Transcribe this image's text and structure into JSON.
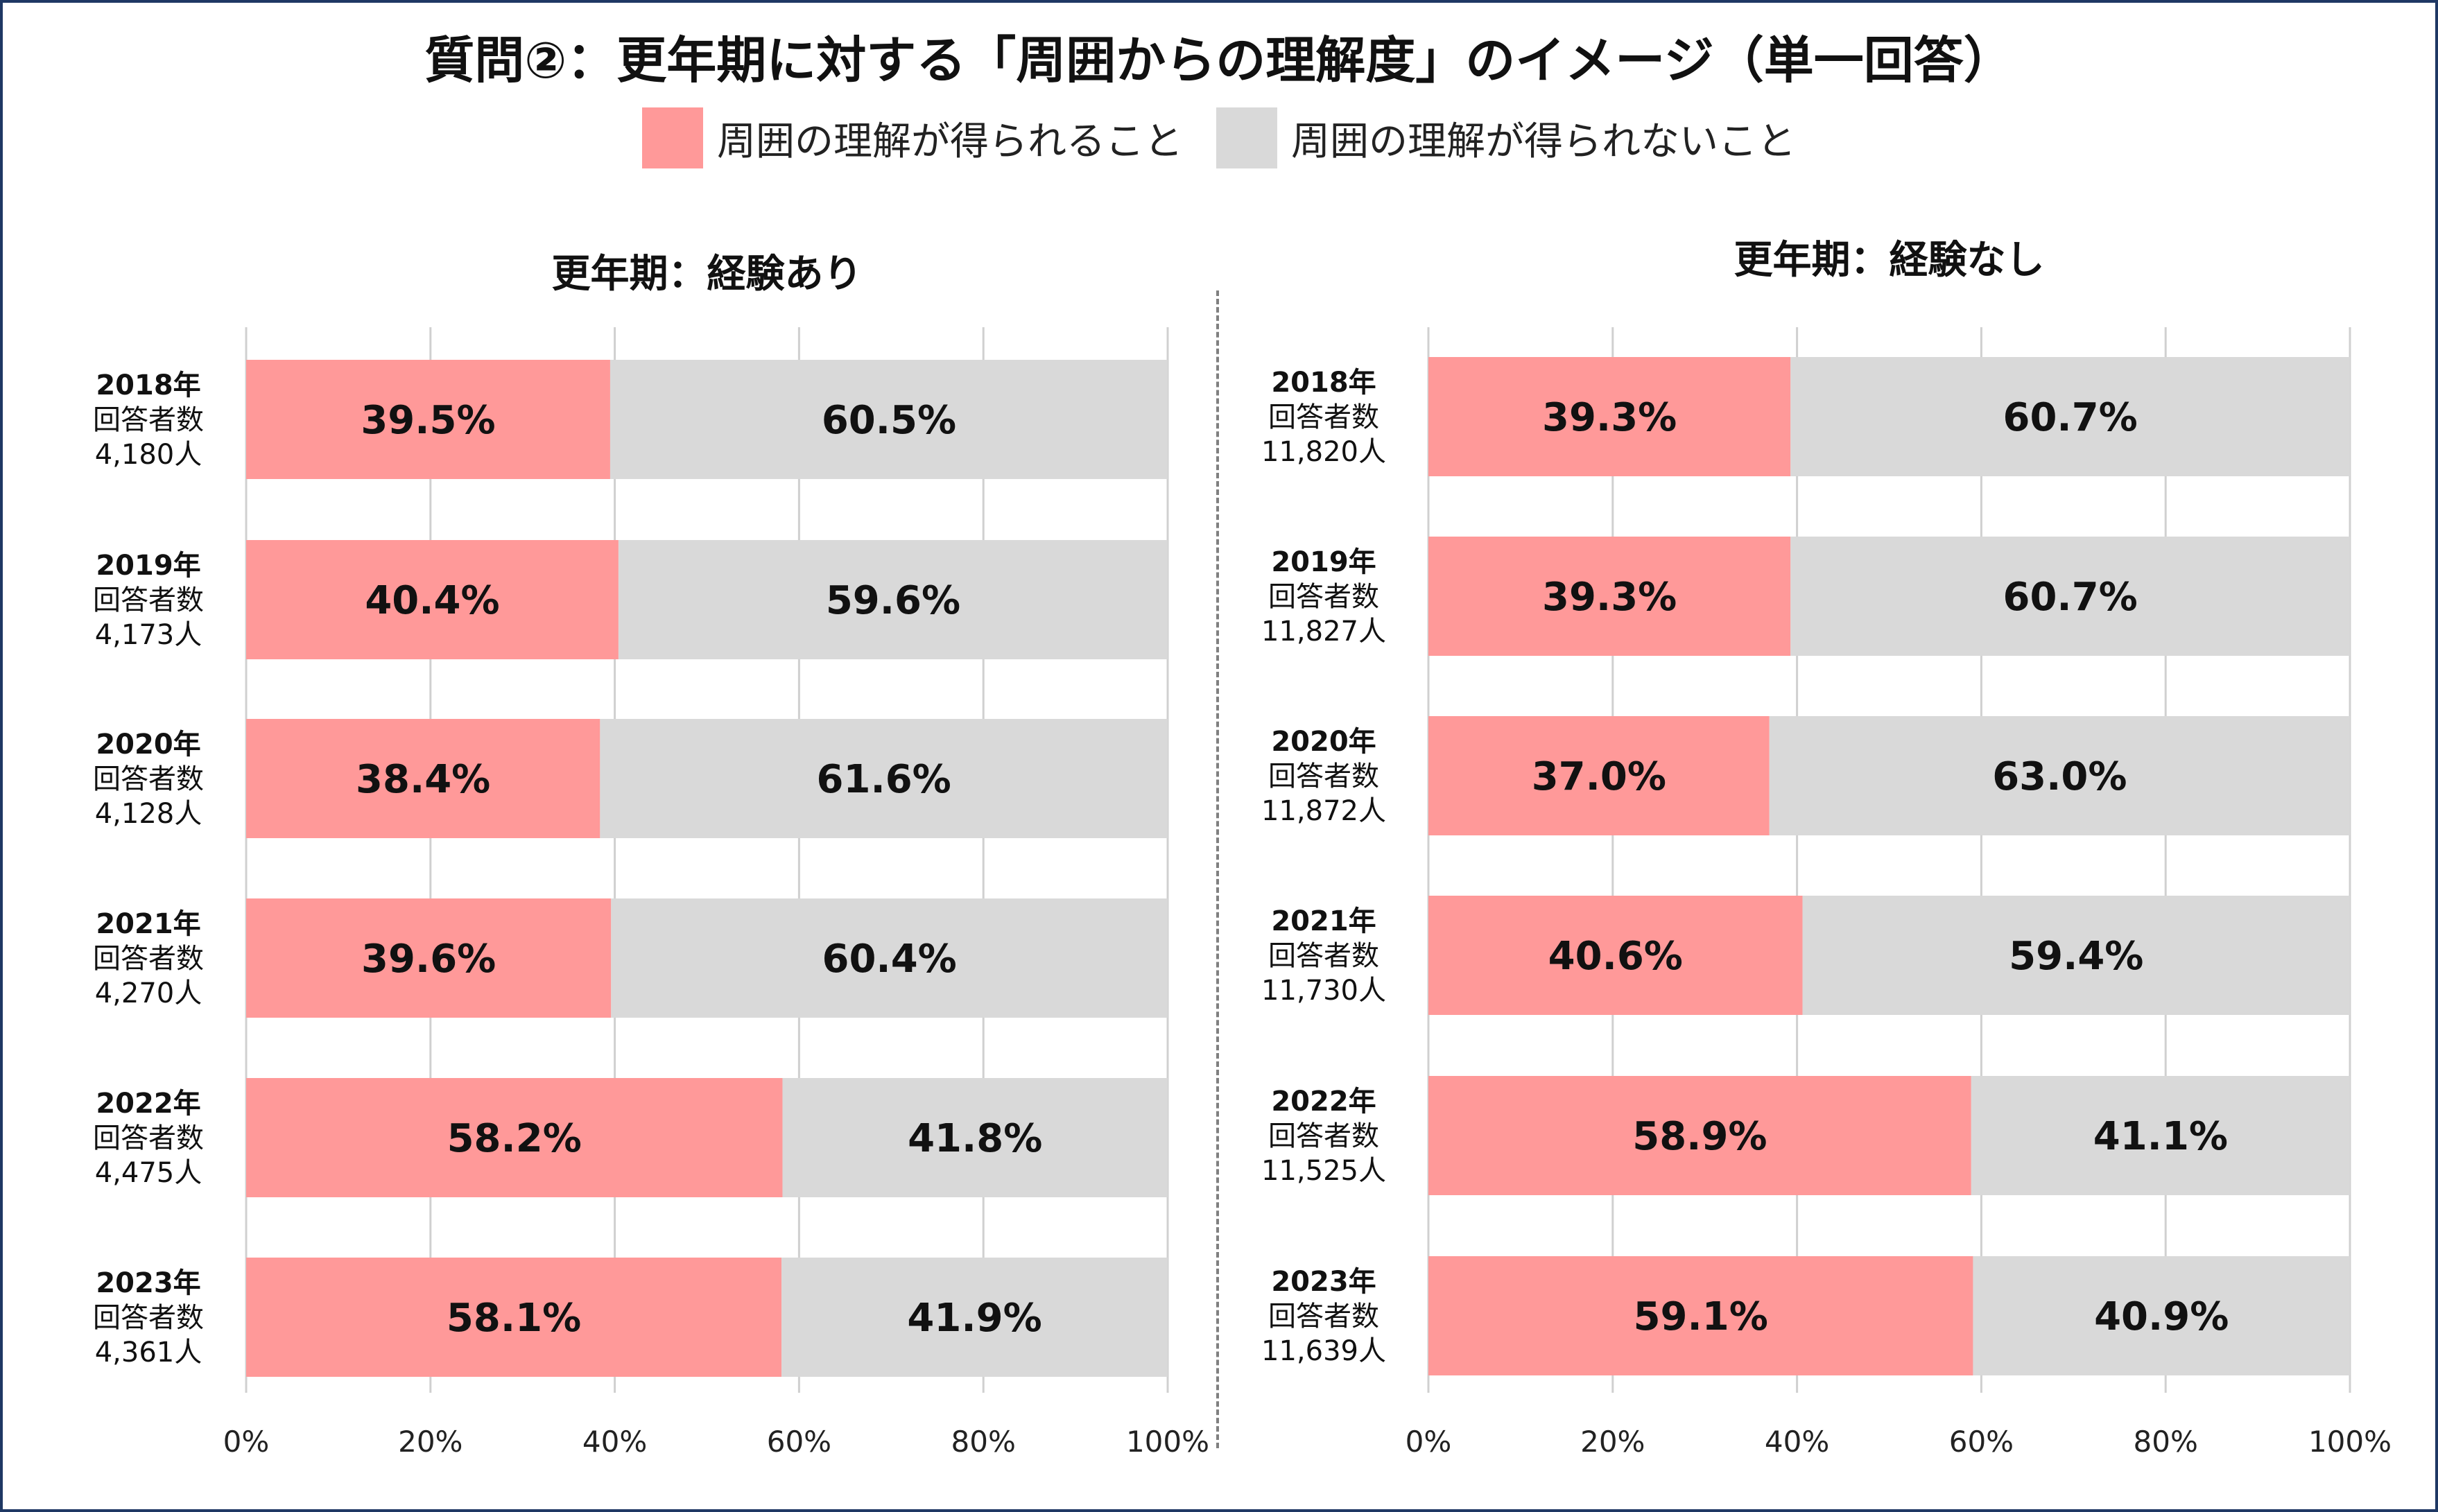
{
  "title": "質問②：更年期に対する「周囲からの理解度」のイメージ（単一回答）",
  "legend": [
    {
      "label": "周囲の理解が得られること",
      "color": "#ff9999"
    },
    {
      "label": "周囲の理解が得られないこと",
      "color": "#d9d9d9"
    }
  ],
  "chart_data": [
    {
      "type": "bar",
      "orientation": "horizontal-stacked-100",
      "title": "更年期：経験あり",
      "categories": [
        "2018年",
        "2019年",
        "2020年",
        "2021年",
        "2022年",
        "2023年"
      ],
      "respondent_label": "回答者数",
      "respondents": [
        "4,180人",
        "4,173人",
        "4,128人",
        "4,270人",
        "4,475人",
        "4,361人"
      ],
      "series": [
        {
          "name": "周囲の理解が得られること",
          "color": "#ff9999",
          "values": [
            39.5,
            40.4,
            38.4,
            39.6,
            58.2,
            58.1
          ],
          "labels": [
            "39.5%",
            "40.4%",
            "38.4%",
            "39.6%",
            "58.2%",
            "58.1%"
          ]
        },
        {
          "name": "周囲の理解が得られないこと",
          "color": "#d9d9d9",
          "values": [
            60.5,
            59.6,
            61.6,
            60.4,
            41.8,
            41.9
          ],
          "labels": [
            "60.5%",
            "59.6%",
            "61.6%",
            "60.4%",
            "41.8%",
            "41.9%"
          ]
        }
      ],
      "xlim": [
        0,
        100
      ],
      "ticks": [
        "0%",
        "20%",
        "40%",
        "60%",
        "80%",
        "100%"
      ],
      "grid": true
    },
    {
      "type": "bar",
      "orientation": "horizontal-stacked-100",
      "title": "更年期：経験なし",
      "categories": [
        "2018年",
        "2019年",
        "2020年",
        "2021年",
        "2022年",
        "2023年"
      ],
      "respondent_label": "回答者数",
      "respondents": [
        "11,820人",
        "11,827人",
        "11,872人",
        "11,730人",
        "11,525人",
        "11,639人"
      ],
      "series": [
        {
          "name": "周囲の理解が得られること",
          "color": "#ff9999",
          "values": [
            39.3,
            39.3,
            37.0,
            40.6,
            58.9,
            59.1
          ],
          "labels": [
            "39.3%",
            "39.3%",
            "37.0%",
            "40.6%",
            "58.9%",
            "59.1%"
          ]
        },
        {
          "name": "周囲の理解が得られないこと",
          "color": "#d9d9d9",
          "values": [
            60.7,
            60.7,
            63.0,
            59.4,
            41.1,
            40.9
          ],
          "labels": [
            "60.7%",
            "60.7%",
            "63.0%",
            "59.4%",
            "41.1%",
            "40.9%"
          ]
        }
      ],
      "xlim": [
        0,
        100
      ],
      "ticks": [
        "0%",
        "20%",
        "40%",
        "60%",
        "80%",
        "100%"
      ],
      "grid": true
    }
  ]
}
